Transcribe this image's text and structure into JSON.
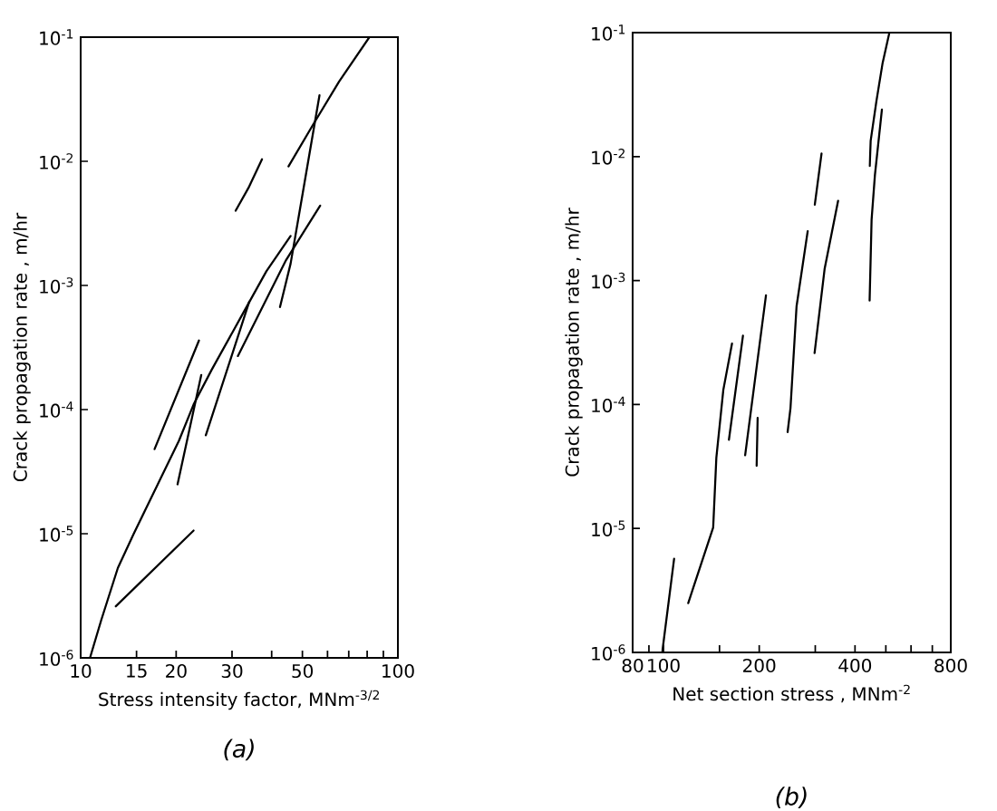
{
  "chart_data": [
    {
      "type": "line",
      "title": "(a)",
      "xlabel": "Stress intensity factor, MNm$^{-3/2}$",
      "ylabel": "Crack propagation rate ,   m/hr",
      "log": "xy",
      "marker": "none",
      "line_style": "solid",
      "xlim": [
        10,
        100
      ],
      "ylim": [
        1e-06,
        0.1
      ],
      "xticks": [
        10,
        15,
        20,
        30,
        {
          "value": 40,
          "label": null
        },
        50,
        {
          "value": 60,
          "label": null
        },
        {
          "value": 70,
          "label": null
        },
        {
          "value": 80,
          "label": null
        },
        {
          "value": 90,
          "label": null
        },
        100
      ],
      "yticks": [
        {
          "value": 1e-06,
          "label": "10$^{-6}$"
        },
        {
          "value": 1e-05,
          "label": "10$^{-5}$"
        },
        {
          "value": 0.0001,
          "label": "10$^{-4}$"
        },
        {
          "value": 0.001,
          "label": "10$^{-3}$"
        },
        {
          "value": 0.01,
          "label": "10$^{-2}$"
        },
        {
          "value": 0.1,
          "label": "10$^{-1}$"
        }
      ],
      "series": [
        {
          "color": "#000000",
          "x": [
            10.7,
            11.6,
            13.1,
            14.7,
            17.5,
            20.4,
            22.7,
            25.9,
            32.3,
            38.5,
            45.9
          ],
          "values": [
            1e-06,
            2e-06,
            5.3e-06,
            1e-05,
            2.5e-05,
            5.6e-05,
            0.00011,
            0.00021,
            0.00058,
            0.0013,
            0.0025
          ]
        },
        {
          "color": "#000000",
          "x": [
            17.1,
            23.6
          ],
          "values": [
            4.8e-05,
            0.00036
          ]
        },
        {
          "color": "#000000",
          "x": [
            20.2,
            24.0
          ],
          "values": [
            2.5e-05,
            0.00019
          ]
        },
        {
          "color": "#000000",
          "x": [
            12.9,
            22.7
          ],
          "values": [
            2.6e-06,
            1.06e-05
          ]
        },
        {
          "color": "#000000",
          "x": [
            24.8,
            34.0
          ],
          "values": [
            6.2e-05,
            0.00074
          ]
        },
        {
          "color": "#000000",
          "x": [
            31.3,
            44.4,
            56.9
          ],
          "values": [
            0.00027,
            0.0016,
            0.0044
          ]
        },
        {
          "color": "#000000",
          "x": [
            42.5,
            45.9,
            50.1,
            56.6
          ],
          "values": [
            0.00067,
            0.0015,
            0.0055,
            0.034
          ]
        },
        {
          "color": "#000000",
          "x": [
            30.8,
            33.8,
            37.3
          ],
          "values": [
            0.004,
            0.0061,
            0.0104
          ]
        },
        {
          "color": "#000000",
          "x": [
            45.2,
            54.2,
            65.3,
            81.3
          ],
          "values": [
            0.0091,
            0.02,
            0.044,
            0.1
          ]
        }
      ]
    },
    {
      "type": "line",
      "title": "(b)",
      "xlabel": "Net section stress ,  MNm$^{-2}$",
      "ylabel": "Crack propagation rate ,   m/hr",
      "log": "xy",
      "marker": "none",
      "line_style": "solid",
      "xlim": [
        80,
        800
      ],
      "ylim": [
        1e-06,
        0.1
      ],
      "xticks": [
        80,
        {
          "value": 90,
          "label": null
        },
        100,
        {
          "value": 150,
          "label": null
        },
        200,
        {
          "value": 300,
          "label": null
        },
        400,
        {
          "value": 500,
          "label": null
        },
        {
          "value": 600,
          "label": null
        },
        {
          "value": 700,
          "label": null
        },
        800
      ],
      "yticks": [
        {
          "value": 1e-06,
          "label": "10$^{-6}$"
        },
        {
          "value": 1e-05,
          "label": "10$^{-5}$"
        },
        {
          "value": 0.0001,
          "label": "10$^{-4}$"
        },
        {
          "value": 0.001,
          "label": "10$^{-3}$"
        },
        {
          "value": 0.01,
          "label": "10$^{-2}$"
        },
        {
          "value": 0.1,
          "label": "10$^{-1}$"
        }
      ],
      "series": [
        {
          "color": "#000000",
          "x": [
            99.1,
            108
          ],
          "values": [
            1e-06,
            5.7e-06
          ]
        },
        {
          "color": "#000000",
          "x": [
            119.6,
            143.3,
            146.6,
            154.2,
            164.2
          ],
          "values": [
            2.5e-06,
            1.02e-05,
            3.7e-05,
            0.000131,
            0.00031
          ]
        },
        {
          "color": "#000000",
          "x": [
            160.6,
            177.8
          ],
          "values": [
            5.2e-05,
            0.00036
          ]
        },
        {
          "color": "#000000",
          "x": [
            180.6,
            210
          ],
          "values": [
            3.9e-05,
            0.00076
          ]
        },
        {
          "color": "#000000",
          "x": [
            196.3,
            197.7
          ],
          "values": [
            3.2e-05,
            7.8e-05
          ]
        },
        {
          "color": "#000000",
          "x": [
            245.6,
            250.7,
            262,
            284
          ],
          "values": [
            6e-05,
            9.3e-05,
            0.00062,
            0.0025
          ]
        },
        {
          "color": "#000000",
          "x": [
            298.5,
            321,
            354
          ],
          "values": [
            0.00026,
            0.00124,
            0.0044
          ]
        },
        {
          "color": "#000000",
          "x": [
            299,
            314
          ],
          "values": [
            0.0041,
            0.0106
          ]
        },
        {
          "color": "#000000",
          "x": [
            444.6,
            451,
            462,
            486
          ],
          "values": [
            0.00069,
            0.0031,
            0.0071,
            0.024
          ]
        },
        {
          "color": "#000000",
          "x": [
            445,
            448,
            467,
            488.5,
            513
          ],
          "values": [
            0.0084,
            0.0134,
            0.028,
            0.057,
            0.1
          ]
        }
      ]
    }
  ]
}
